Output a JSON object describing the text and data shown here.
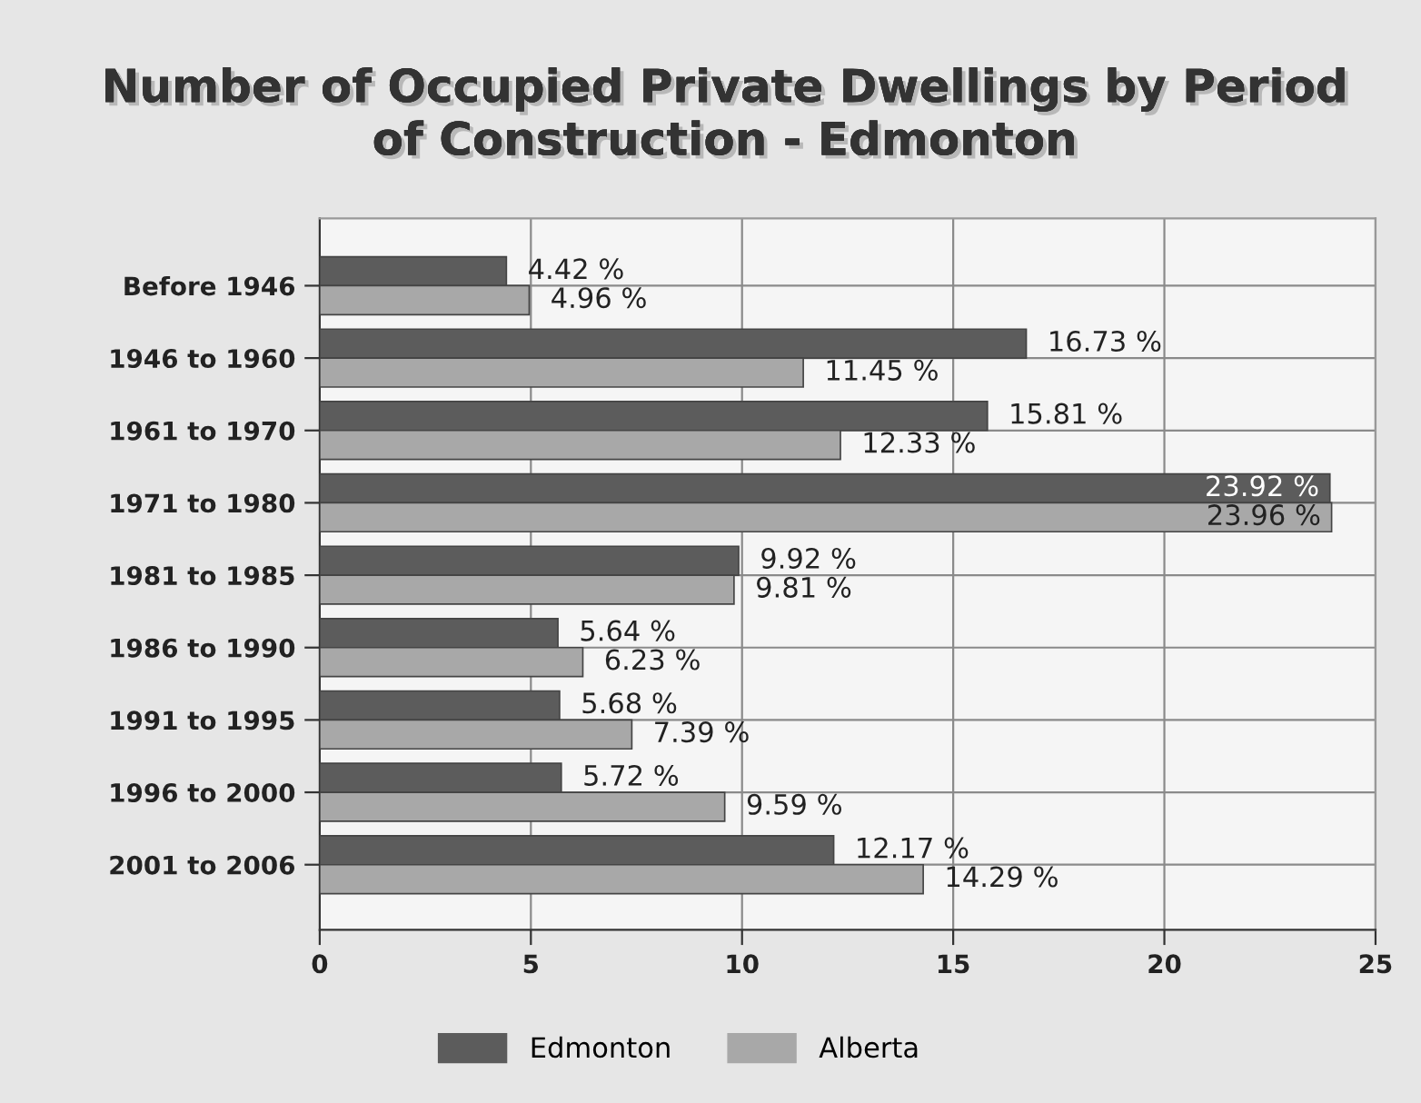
{
  "chart_data": {
    "type": "bar",
    "orientation": "horizontal",
    "title": "Number of Occupied Private Dwellings by Period\nof Construction - Edmonton",
    "categories": [
      "Before 1946",
      "1946 to 1960",
      "1961 to 1970",
      "1971 to 1980",
      "1981 to 1985",
      "1986 to 1990",
      "1991 to 1995",
      "1996 to 2000",
      "2001 to 2006"
    ],
    "series": [
      {
        "name": "Edmonton",
        "color": "#5c5c5c",
        "values": [
          4.42,
          16.73,
          15.81,
          23.92,
          9.92,
          5.64,
          5.68,
          5.72,
          12.17
        ],
        "value_labels": [
          "4.42 %",
          "16.73 %",
          "15.81 %",
          "23.92 %",
          "9.92 %",
          "5.64 %",
          "5.68 %",
          "5.72 %",
          "12.17 %"
        ]
      },
      {
        "name": "Alberta",
        "color": "#a8a8a8",
        "values": [
          4.96,
          11.45,
          12.33,
          23.96,
          9.81,
          6.23,
          7.39,
          9.59,
          14.29
        ],
        "value_labels": [
          "4.96 %",
          "11.45 %",
          "12.33 %",
          "23.96 %",
          "9.81 %",
          "6.23 %",
          "7.39 %",
          "9.59 %",
          "14.29 %"
        ]
      }
    ],
    "xlim": [
      0,
      25
    ],
    "xticks": [
      0,
      5,
      10,
      15,
      20,
      25
    ],
    "grid": true,
    "legend": "bottom"
  }
}
